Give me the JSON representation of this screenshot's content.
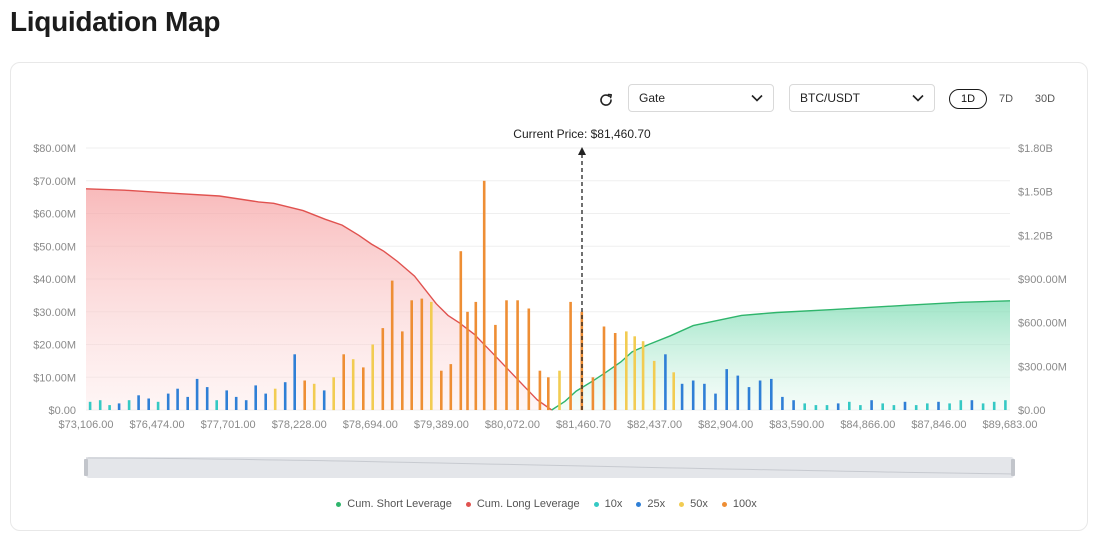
{
  "page": {
    "title": "Liquidation Map"
  },
  "controls": {
    "exchange": "Gate",
    "pair": "BTC/USDT",
    "ranges": [
      {
        "label": "1D",
        "active": true
      },
      {
        "label": "7D",
        "active": false
      },
      {
        "label": "30D",
        "active": false
      }
    ]
  },
  "colors": {
    "short_line": "#2fb56c",
    "long_line": "#e0524f",
    "x10": "#35c9c4",
    "x25": "#2f7fd6",
    "x50": "#f2cc52",
    "x100": "#ee8e34"
  },
  "chart_data": {
    "type": "bar",
    "current_price_label": "Current Price: $81,460.70",
    "current_price": 81460.7,
    "x_range": [
      73106,
      89683
    ],
    "x_tick_labels": [
      "$73,106.00",
      "$76,474.00",
      "$77,701.00",
      "$78,228.00",
      "$78,694.00",
      "$79,389.00",
      "$80,072.00",
      "$81,460.70",
      "$82,437.00",
      "$82,904.00",
      "$83,590.00",
      "$84,866.00",
      "$87,846.00",
      "$89,683.00"
    ],
    "y_left_ticks": [
      "$0.00",
      "$10.00M",
      "$20.00M",
      "$30.00M",
      "$40.00M",
      "$50.00M",
      "$60.00M",
      "$70.00M",
      "$80.00M"
    ],
    "y_left_range": [
      0,
      80
    ],
    "y_right_ticks": [
      "$0.00",
      "$300.00M",
      "$600.00M",
      "$900.00M",
      "$1.20B",
      "$1.50B",
      "$1.80B"
    ],
    "y_right_range": [
      0,
      1800
    ],
    "grid": true,
    "legend_position": "bottom",
    "legend": [
      "Cum. Short Leverage",
      "Cum. Long Leverage",
      "10x",
      "25x",
      "50x",
      "100x"
    ],
    "cum_long_leverage_millions": {
      "x": [
        73106,
        73800,
        74600,
        75500,
        76200,
        76474,
        77000,
        77400,
        77701,
        78000,
        78228,
        78450,
        78694,
        79000,
        79389,
        79600,
        79800,
        80072,
        80400,
        80700,
        81000,
        81200,
        81460.7
      ],
      "y": [
        1520,
        1510,
        1490,
        1470,
        1430,
        1420,
        1370,
        1310,
        1270,
        1200,
        1140,
        1090,
        1020,
        920,
        730,
        650,
        600,
        520,
        390,
        270,
        150,
        70,
        0
      ]
    },
    "cum_short_leverage_millions": {
      "x": [
        81460.7,
        81700,
        81900,
        82200,
        82437,
        82700,
        82904,
        83200,
        83590,
        84000,
        84866,
        85500,
        86500,
        87846,
        88800,
        89683
      ],
      "y": [
        0,
        60,
        130,
        200,
        260,
        330,
        400,
        450,
        510,
        580,
        650,
        670,
        690,
        720,
        740,
        750
      ]
    },
    "bars_millions": [
      {
        "x": 73180,
        "lev": "10x",
        "v": 2.5
      },
      {
        "x": 73360,
        "lev": "10x",
        "v": 3.0
      },
      {
        "x": 73530,
        "lev": "10x",
        "v": 1.5
      },
      {
        "x": 73700,
        "lev": "25x",
        "v": 2.0
      },
      {
        "x": 73880,
        "lev": "10x",
        "v": 3.0
      },
      {
        "x": 74050,
        "lev": "25x",
        "v": 4.5
      },
      {
        "x": 74230,
        "lev": "25x",
        "v": 3.5
      },
      {
        "x": 74400,
        "lev": "10x",
        "v": 2.5
      },
      {
        "x": 74580,
        "lev": "25x",
        "v": 5.0
      },
      {
        "x": 74750,
        "lev": "25x",
        "v": 6.5
      },
      {
        "x": 74930,
        "lev": "25x",
        "v": 4.0
      },
      {
        "x": 75100,
        "lev": "25x",
        "v": 9.5
      },
      {
        "x": 75280,
        "lev": "25x",
        "v": 7.0
      },
      {
        "x": 75450,
        "lev": "10x",
        "v": 3.0
      },
      {
        "x": 75630,
        "lev": "25x",
        "v": 6.0
      },
      {
        "x": 75800,
        "lev": "25x",
        "v": 4.0
      },
      {
        "x": 75980,
        "lev": "25x",
        "v": 3.0
      },
      {
        "x": 76150,
        "lev": "25x",
        "v": 7.5
      },
      {
        "x": 76330,
        "lev": "25x",
        "v": 5.0
      },
      {
        "x": 76500,
        "lev": "50x",
        "v": 6.5
      },
      {
        "x": 76680,
        "lev": "25x",
        "v": 8.5
      },
      {
        "x": 76850,
        "lev": "25x",
        "v": 17.0
      },
      {
        "x": 77030,
        "lev": "100x",
        "v": 9.0
      },
      {
        "x": 77200,
        "lev": "50x",
        "v": 8.0
      },
      {
        "x": 77380,
        "lev": "25x",
        "v": 6.0
      },
      {
        "x": 77550,
        "lev": "50x",
        "v": 10.0
      },
      {
        "x": 77730,
        "lev": "100x",
        "v": 17.0
      },
      {
        "x": 77900,
        "lev": "50x",
        "v": 15.5
      },
      {
        "x": 78080,
        "lev": "100x",
        "v": 13.0
      },
      {
        "x": 78250,
        "lev": "50x",
        "v": 20.0
      },
      {
        "x": 78430,
        "lev": "100x",
        "v": 25.0
      },
      {
        "x": 78600,
        "lev": "100x",
        "v": 39.5
      },
      {
        "x": 78780,
        "lev": "100x",
        "v": 24.0
      },
      {
        "x": 78950,
        "lev": "100x",
        "v": 33.5
      },
      {
        "x": 79130,
        "lev": "100x",
        "v": 34.0
      },
      {
        "x": 79300,
        "lev": "50x",
        "v": 33.0
      },
      {
        "x": 79480,
        "lev": "100x",
        "v": 12.0
      },
      {
        "x": 79650,
        "lev": "100x",
        "v": 14.0
      },
      {
        "x": 79830,
        "lev": "100x",
        "v": 48.5
      },
      {
        "x": 79950,
        "lev": "100x",
        "v": 30.0
      },
      {
        "x": 80100,
        "lev": "100x",
        "v": 33.0
      },
      {
        "x": 80250,
        "lev": "100x",
        "v": 70.0
      },
      {
        "x": 80450,
        "lev": "100x",
        "v": 26.0
      },
      {
        "x": 80650,
        "lev": "100x",
        "v": 33.5
      },
      {
        "x": 80850,
        "lev": "100x",
        "v": 33.5
      },
      {
        "x": 81050,
        "lev": "100x",
        "v": 31.0
      },
      {
        "x": 81250,
        "lev": "100x",
        "v": 12.0
      },
      {
        "x": 81400,
        "lev": "100x",
        "v": 10.0
      },
      {
        "x": 81600,
        "lev": "50x",
        "v": 12.0
      },
      {
        "x": 81800,
        "lev": "100x",
        "v": 33.0
      },
      {
        "x": 82000,
        "lev": "100x",
        "v": 30.0
      },
      {
        "x": 82200,
        "lev": "100x",
        "v": 10.0
      },
      {
        "x": 82400,
        "lev": "100x",
        "v": 25.5
      },
      {
        "x": 82600,
        "lev": "100x",
        "v": 23.5
      },
      {
        "x": 82800,
        "lev": "50x",
        "v": 24.0
      },
      {
        "x": 82950,
        "lev": "50x",
        "v": 22.5
      },
      {
        "x": 83100,
        "lev": "50x",
        "v": 21.0
      },
      {
        "x": 83300,
        "lev": "50x",
        "v": 15.0
      },
      {
        "x": 83500,
        "lev": "25x",
        "v": 17.0
      },
      {
        "x": 83650,
        "lev": "50x",
        "v": 11.5
      },
      {
        "x": 83800,
        "lev": "25x",
        "v": 8.0
      },
      {
        "x": 84000,
        "lev": "25x",
        "v": 9.0
      },
      {
        "x": 84200,
        "lev": "25x",
        "v": 8.0
      },
      {
        "x": 84400,
        "lev": "25x",
        "v": 5.0
      },
      {
        "x": 84600,
        "lev": "25x",
        "v": 12.5
      },
      {
        "x": 84800,
        "lev": "25x",
        "v": 10.5
      },
      {
        "x": 85000,
        "lev": "25x",
        "v": 7.0
      },
      {
        "x": 85200,
        "lev": "25x",
        "v": 9.0
      },
      {
        "x": 85400,
        "lev": "25x",
        "v": 9.5
      },
      {
        "x": 85600,
        "lev": "25x",
        "v": 4.0
      },
      {
        "x": 85800,
        "lev": "25x",
        "v": 3.0
      },
      {
        "x": 86000,
        "lev": "10x",
        "v": 2.0
      },
      {
        "x": 86200,
        "lev": "10x",
        "v": 1.5
      },
      {
        "x": 86400,
        "lev": "10x",
        "v": 1.5
      },
      {
        "x": 86600,
        "lev": "25x",
        "v": 2.0
      },
      {
        "x": 86800,
        "lev": "10x",
        "v": 2.5
      },
      {
        "x": 87000,
        "lev": "10x",
        "v": 1.5
      },
      {
        "x": 87200,
        "lev": "25x",
        "v": 3.0
      },
      {
        "x": 87400,
        "lev": "10x",
        "v": 2.0
      },
      {
        "x": 87600,
        "lev": "10x",
        "v": 1.5
      },
      {
        "x": 87800,
        "lev": "25x",
        "v": 2.5
      },
      {
        "x": 88000,
        "lev": "10x",
        "v": 1.5
      },
      {
        "x": 88200,
        "lev": "10x",
        "v": 2.0
      },
      {
        "x": 88400,
        "lev": "25x",
        "v": 2.5
      },
      {
        "x": 88600,
        "lev": "10x",
        "v": 2.0
      },
      {
        "x": 88800,
        "lev": "10x",
        "v": 3.0
      },
      {
        "x": 89000,
        "lev": "25x",
        "v": 3.0
      },
      {
        "x": 89200,
        "lev": "10x",
        "v": 2.0
      },
      {
        "x": 89400,
        "lev": "10x",
        "v": 2.5
      },
      {
        "x": 89600,
        "lev": "10x",
        "v": 3.0
      }
    ]
  }
}
